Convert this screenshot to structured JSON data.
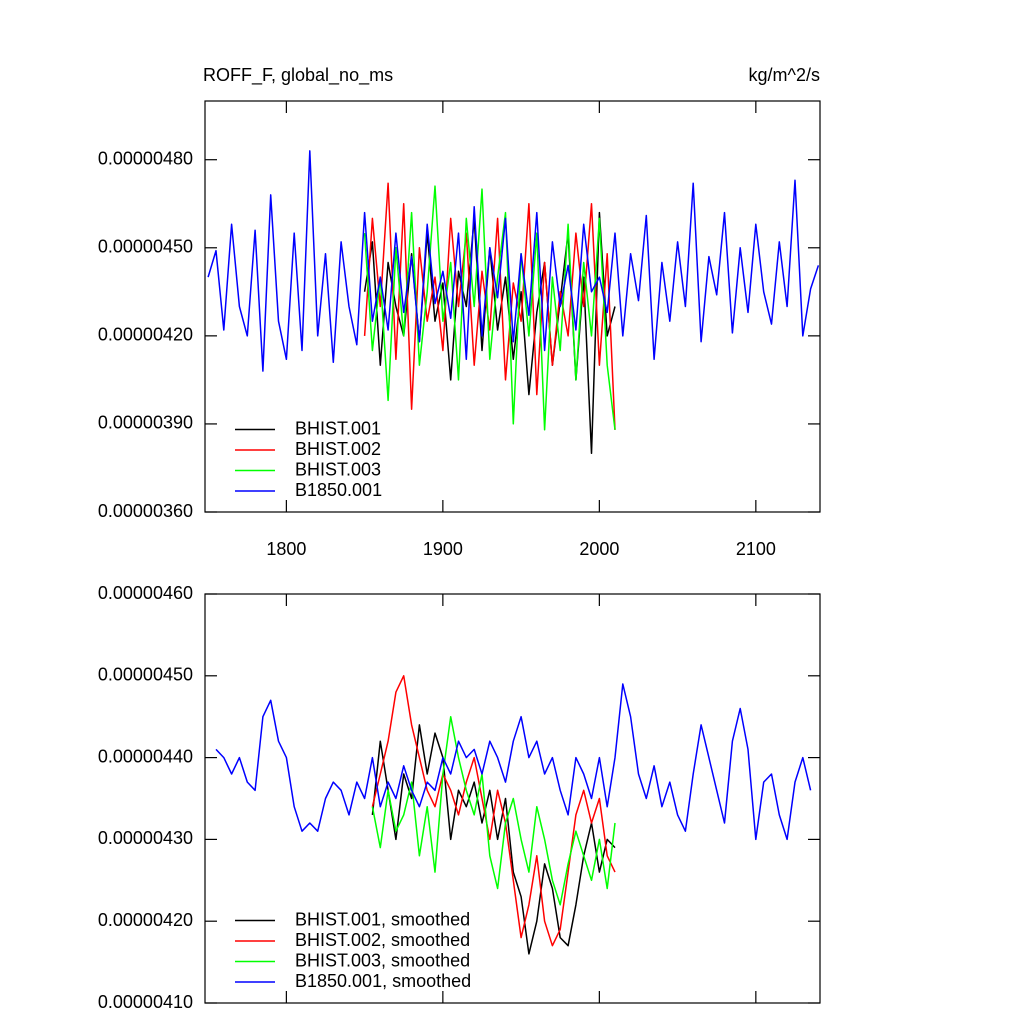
{
  "chart_data": [
    {
      "type": "line",
      "title": "ROFF_F, global_no_ms",
      "units": "kg/m^2/s",
      "xlim": [
        1748,
        2141
      ],
      "ylim": [
        3.6e-06,
        5e-06
      ],
      "xticks": [
        1800,
        1900,
        2000,
        2100
      ],
      "show_xtick_labels": true,
      "yticks": [
        {
          "value": 3.6e-06,
          "label": "0.00000360"
        },
        {
          "value": 3.9e-06,
          "label": "0.00000390"
        },
        {
          "value": 4.2e-06,
          "label": "0.00000420"
        },
        {
          "value": 4.5e-06,
          "label": "0.00000450"
        },
        {
          "value": 4.8e-06,
          "label": "0.00000480"
        }
      ],
      "legend": "lower left",
      "series": [
        {
          "name": "BHIST.001",
          "color": "#000000",
          "x": [
            1850,
            1855,
            1860,
            1865,
            1870,
            1875,
            1880,
            1885,
            1890,
            1895,
            1900,
            1905,
            1910,
            1915,
            1920,
            1925,
            1930,
            1935,
            1940,
            1945,
            1950,
            1955,
            1960,
            1965,
            1970,
            1975,
            1980,
            1985,
            1990,
            1995,
            2000,
            2005,
            2010
          ],
          "values": [
            4.35e-06,
            4.52e-06,
            4.1e-06,
            4.45e-06,
            4.3e-06,
            4.2e-06,
            4.48e-06,
            4.18e-06,
            4.55e-06,
            4.25e-06,
            4.38e-06,
            4.05e-06,
            4.42e-06,
            4.3e-06,
            4.6e-06,
            4.15e-06,
            4.5e-06,
            4.22e-06,
            4.4e-06,
            4.12e-06,
            4.35e-06,
            4e-06,
            4.28e-06,
            4.45e-06,
            4.1e-06,
            4.32e-06,
            4.55e-06,
            4.05e-06,
            4.4e-06,
            3.8e-06,
            4.62e-06,
            4.2e-06,
            4.3e-06
          ]
        },
        {
          "name": "BHIST.002",
          "color": "#ff0000",
          "x": [
            1850,
            1855,
            1860,
            1865,
            1870,
            1875,
            1880,
            1885,
            1890,
            1895,
            1900,
            1905,
            1910,
            1915,
            1920,
            1925,
            1930,
            1935,
            1940,
            1945,
            1950,
            1955,
            1960,
            1965,
            1970,
            1975,
            1980,
            1985,
            1990,
            1995,
            2000,
            2005,
            2010
          ],
          "values": [
            4.2e-06,
            4.6e-06,
            4.3e-06,
            4.72e-06,
            4.12e-06,
            4.65e-06,
            3.95e-06,
            4.5e-06,
            4.25e-06,
            4.4e-06,
            4.15e-06,
            4.6e-06,
            4.3e-06,
            4.55e-06,
            4.1e-06,
            4.42e-06,
            4.22e-06,
            4.6e-06,
            4.05e-06,
            4.38e-06,
            4.25e-06,
            4.65e-06,
            4e-06,
            4.45e-06,
            4.1e-06,
            4.35e-06,
            4.2e-06,
            4.55e-06,
            4.3e-06,
            4.65e-06,
            4.1e-06,
            4.48e-06,
            3.88e-06
          ]
        },
        {
          "name": "BHIST.003",
          "color": "#00ff00",
          "x": [
            1850,
            1855,
            1860,
            1865,
            1870,
            1875,
            1880,
            1885,
            1890,
            1895,
            1900,
            1905,
            1910,
            1915,
            1920,
            1925,
            1930,
            1935,
            1940,
            1945,
            1950,
            1955,
            1960,
            1965,
            1970,
            1975,
            1980,
            1985,
            1990,
            1995,
            2000,
            2005,
            2010
          ],
          "values": [
            4.55e-06,
            4.15e-06,
            4.4e-06,
            3.98e-06,
            4.5e-06,
            4.2e-06,
            4.62e-06,
            4.1e-06,
            4.35e-06,
            4.71e-06,
            4.25e-06,
            4.45e-06,
            4.05e-06,
            4.6e-06,
            4.3e-06,
            4.7e-06,
            4.12e-06,
            4.4e-06,
            4.62e-06,
            3.9e-06,
            4.48e-06,
            4.2e-06,
            4.55e-06,
            3.88e-06,
            4.4e-06,
            4.15e-06,
            4.58e-06,
            4.05e-06,
            4.45e-06,
            4.2e-06,
            4.6e-06,
            4.1e-06,
            3.88e-06
          ]
        },
        {
          "name": "B1850.001",
          "color": "#0000ff",
          "x": [
            1750,
            1755,
            1760,
            1765,
            1770,
            1775,
            1780,
            1785,
            1790,
            1795,
            1800,
            1805,
            1810,
            1815,
            1820,
            1825,
            1830,
            1835,
            1840,
            1845,
            1850,
            1855,
            1860,
            1865,
            1870,
            1875,
            1880,
            1885,
            1890,
            1895,
            1900,
            1905,
            1910,
            1915,
            1920,
            1925,
            1930,
            1935,
            1940,
            1945,
            1950,
            1955,
            1960,
            1965,
            1970,
            1975,
            1980,
            1985,
            1990,
            1995,
            2000,
            2005,
            2010,
            2015,
            2020,
            2025,
            2030,
            2035,
            2040,
            2045,
            2050,
            2055,
            2060,
            2065,
            2070,
            2075,
            2080,
            2085,
            2090,
            2095,
            2100,
            2105,
            2110,
            2115,
            2120,
            2125,
            2130,
            2135,
            2140
          ],
          "values": [
            4.4e-06,
            4.49e-06,
            4.22e-06,
            4.58e-06,
            4.3e-06,
            4.2e-06,
            4.56e-06,
            4.08e-06,
            4.68e-06,
            4.25e-06,
            4.12e-06,
            4.55e-06,
            4.15e-06,
            4.83e-06,
            4.2e-06,
            4.48e-06,
            4.11e-06,
            4.52e-06,
            4.3e-06,
            4.17e-06,
            4.62e-06,
            4.25e-06,
            4.4e-06,
            4.22e-06,
            4.55e-06,
            4.28e-06,
            4.47e-06,
            4.18e-06,
            4.58e-06,
            4.31e-06,
            4.42e-06,
            4.26e-06,
            4.55e-06,
            4.12e-06,
            4.64e-06,
            4.2e-06,
            4.5e-06,
            4.33e-06,
            4.6e-06,
            4.18e-06,
            4.48e-06,
            4.27e-06,
            4.62e-06,
            4.15e-06,
            4.52e-06,
            4.3e-06,
            4.44e-06,
            4.22e-06,
            4.58e-06,
            4.35e-06,
            4.4e-06,
            4.28e-06,
            4.55e-06,
            4.2e-06,
            4.48e-06,
            4.32e-06,
            4.61e-06,
            4.12e-06,
            4.45e-06,
            4.25e-06,
            4.52e-06,
            4.3e-06,
            4.72e-06,
            4.18e-06,
            4.47e-06,
            4.34e-06,
            4.62e-06,
            4.21e-06,
            4.5e-06,
            4.28e-06,
            4.58e-06,
            4.35e-06,
            4.24e-06,
            4.52e-06,
            4.3e-06,
            4.73e-06,
            4.2e-06,
            4.36e-06,
            4.44e-06
          ]
        }
      ]
    },
    {
      "type": "line",
      "xlim": [
        1748,
        2141
      ],
      "ylim": [
        4.1e-06,
        4.6e-06
      ],
      "xticks": [
        1800,
        1900,
        2000,
        2100
      ],
      "show_xtick_labels": false,
      "yticks": [
        {
          "value": 4.1e-06,
          "label": "0.00000410"
        },
        {
          "value": 4.2e-06,
          "label": "0.00000420"
        },
        {
          "value": 4.3e-06,
          "label": "0.00000430"
        },
        {
          "value": 4.4e-06,
          "label": "0.00000440"
        },
        {
          "value": 4.5e-06,
          "label": "0.00000450"
        },
        {
          "value": 4.6e-06,
          "label": "0.00000460"
        }
      ],
      "legend": "lower left",
      "series": [
        {
          "name": "BHIST.001, smoothed",
          "color": "#000000",
          "x": [
            1855,
            1860,
            1865,
            1870,
            1875,
            1880,
            1885,
            1890,
            1895,
            1900,
            1905,
            1910,
            1915,
            1920,
            1925,
            1930,
            1935,
            1940,
            1945,
            1950,
            1955,
            1960,
            1965,
            1970,
            1975,
            1980,
            1985,
            1990,
            1995,
            2000,
            2005,
            2010
          ],
          "values": [
            4.33e-06,
            4.42e-06,
            4.36e-06,
            4.3e-06,
            4.38e-06,
            4.35e-06,
            4.44e-06,
            4.38e-06,
            4.43e-06,
            4.4e-06,
            4.3e-06,
            4.36e-06,
            4.34e-06,
            4.37e-06,
            4.32e-06,
            4.36e-06,
            4.3e-06,
            4.35e-06,
            4.26e-06,
            4.23e-06,
            4.16e-06,
            4.2e-06,
            4.27e-06,
            4.24e-06,
            4.18e-06,
            4.17e-06,
            4.22e-06,
            4.28e-06,
            4.32e-06,
            4.26e-06,
            4.3e-06,
            4.29e-06
          ]
        },
        {
          "name": "BHIST.002, smoothed",
          "color": "#ff0000",
          "x": [
            1855,
            1860,
            1865,
            1870,
            1875,
            1880,
            1885,
            1890,
            1895,
            1900,
            1905,
            1910,
            1915,
            1920,
            1925,
            1930,
            1935,
            1940,
            1945,
            1950,
            1955,
            1960,
            1965,
            1970,
            1975,
            1980,
            1985,
            1990,
            1995,
            2000,
            2005,
            2010
          ],
          "values": [
            4.34e-06,
            4.38e-06,
            4.42e-06,
            4.48e-06,
            4.5e-06,
            4.44e-06,
            4.4e-06,
            4.36e-06,
            4.34e-06,
            4.38e-06,
            4.36e-06,
            4.33e-06,
            4.37e-06,
            4.4e-06,
            4.35e-06,
            4.3e-06,
            4.36e-06,
            4.32e-06,
            4.25e-06,
            4.18e-06,
            4.22e-06,
            4.28e-06,
            4.2e-06,
            4.17e-06,
            4.19e-06,
            4.26e-06,
            4.33e-06,
            4.36e-06,
            4.32e-06,
            4.35e-06,
            4.28e-06,
            4.26e-06
          ]
        },
        {
          "name": "BHIST.003, smoothed",
          "color": "#00ff00",
          "x": [
            1855,
            1860,
            1865,
            1870,
            1875,
            1880,
            1885,
            1890,
            1895,
            1900,
            1905,
            1910,
            1915,
            1920,
            1925,
            1930,
            1935,
            1940,
            1945,
            1950,
            1955,
            1960,
            1965,
            1970,
            1975,
            1980,
            1985,
            1990,
            1995,
            2000,
            2005,
            2010
          ],
          "values": [
            4.34e-06,
            4.29e-06,
            4.36e-06,
            4.31e-06,
            4.33e-06,
            4.37e-06,
            4.28e-06,
            4.34e-06,
            4.26e-06,
            4.38e-06,
            4.45e-06,
            4.4e-06,
            4.36e-06,
            4.33e-06,
            4.38e-06,
            4.28e-06,
            4.24e-06,
            4.32e-06,
            4.35e-06,
            4.3e-06,
            4.26e-06,
            4.34e-06,
            4.3e-06,
            4.25e-06,
            4.22e-06,
            4.27e-06,
            4.31e-06,
            4.28e-06,
            4.25e-06,
            4.3e-06,
            4.24e-06,
            4.32e-06
          ]
        },
        {
          "name": "B1850.001, smoothed",
          "color": "#0000ff",
          "x": [
            1755,
            1760,
            1765,
            1770,
            1775,
            1780,
            1785,
            1790,
            1795,
            1800,
            1805,
            1810,
            1815,
            1820,
            1825,
            1830,
            1835,
            1840,
            1845,
            1850,
            1855,
            1860,
            1865,
            1870,
            1875,
            1880,
            1885,
            1890,
            1895,
            1900,
            1905,
            1910,
            1915,
            1920,
            1925,
            1930,
            1935,
            1940,
            1945,
            1950,
            1955,
            1960,
            1965,
            1970,
            1975,
            1980,
            1985,
            1990,
            1995,
            2000,
            2005,
            2010,
            2015,
            2020,
            2025,
            2030,
            2035,
            2040,
            2045,
            2050,
            2055,
            2060,
            2065,
            2070,
            2075,
            2080,
            2085,
            2090,
            2095,
            2100,
            2105,
            2110,
            2115,
            2120,
            2125,
            2130,
            2135
          ],
          "values": [
            4.41e-06,
            4.4e-06,
            4.38e-06,
            4.4e-06,
            4.37e-06,
            4.36e-06,
            4.45e-06,
            4.47e-06,
            4.42e-06,
            4.4e-06,
            4.34e-06,
            4.31e-06,
            4.32e-06,
            4.31e-06,
            4.35e-06,
            4.37e-06,
            4.36e-06,
            4.33e-06,
            4.37e-06,
            4.35e-06,
            4.4e-06,
            4.34e-06,
            4.37e-06,
            4.35e-06,
            4.39e-06,
            4.36e-06,
            4.34e-06,
            4.37e-06,
            4.36e-06,
            4.4e-06,
            4.38e-06,
            4.42e-06,
            4.4e-06,
            4.41e-06,
            4.38e-06,
            4.42e-06,
            4.4e-06,
            4.37e-06,
            4.42e-06,
            4.45e-06,
            4.4e-06,
            4.42e-06,
            4.38e-06,
            4.4e-06,
            4.36e-06,
            4.33e-06,
            4.4e-06,
            4.38e-06,
            4.35e-06,
            4.4e-06,
            4.34e-06,
            4.4e-06,
            4.49e-06,
            4.45e-06,
            4.38e-06,
            4.35e-06,
            4.39e-06,
            4.34e-06,
            4.37e-06,
            4.33e-06,
            4.31e-06,
            4.38e-06,
            4.44e-06,
            4.4e-06,
            4.36e-06,
            4.32e-06,
            4.42e-06,
            4.46e-06,
            4.41e-06,
            4.3e-06,
            4.37e-06,
            4.38e-06,
            4.33e-06,
            4.3e-06,
            4.37e-06,
            4.4e-06,
            4.36e-06
          ]
        }
      ]
    }
  ]
}
